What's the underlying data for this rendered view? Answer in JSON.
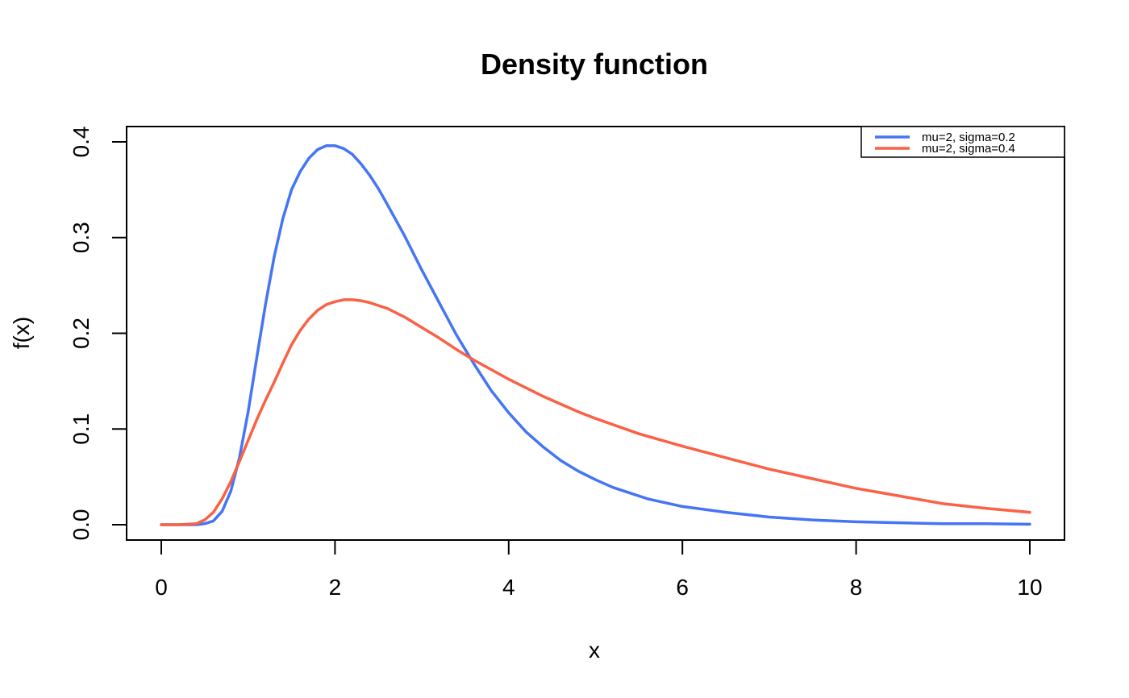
{
  "chart_data": {
    "type": "line",
    "title": "Density function",
    "xlabel": "x",
    "ylabel": "f(x)",
    "xlim": [
      0,
      10
    ],
    "ylim": [
      0,
      0.4
    ],
    "xticks": [
      0,
      2,
      4,
      6,
      8,
      10
    ],
    "yticks": [
      0,
      0.1,
      0.2,
      0.3,
      0.4
    ],
    "xtick_labels": [
      "0",
      "2",
      "4",
      "6",
      "8",
      "10"
    ],
    "ytick_labels": [
      "0.0",
      "0.1",
      "0.2",
      "0.3",
      "0.4"
    ],
    "grid": false,
    "legend_position": "top-right",
    "series": [
      {
        "name": "mu=2, sigma=0.2",
        "color": "#4575F5",
        "x": [
          0,
          0.2,
          0.4,
          0.5,
          0.6,
          0.7,
          0.8,
          0.9,
          1.0,
          1.1,
          1.2,
          1.3,
          1.4,
          1.5,
          1.6,
          1.7,
          1.8,
          1.9,
          2.0,
          2.1,
          2.2,
          2.3,
          2.4,
          2.5,
          2.6,
          2.8,
          3.0,
          3.2,
          3.4,
          3.6,
          3.8,
          4.0,
          4.2,
          4.4,
          4.6,
          4.8,
          5.0,
          5.2,
          5.4,
          5.6,
          5.8,
          6.0,
          6.5,
          7.0,
          7.5,
          8.0,
          8.5,
          9.0,
          9.5,
          10.0
        ],
        "values": [
          0,
          0,
          0,
          0.001,
          0.004,
          0.014,
          0.035,
          0.07,
          0.118,
          0.175,
          0.23,
          0.28,
          0.32,
          0.35,
          0.369,
          0.383,
          0.392,
          0.396,
          0.396,
          0.393,
          0.387,
          0.377,
          0.365,
          0.351,
          0.335,
          0.302,
          0.266,
          0.232,
          0.198,
          0.168,
          0.14,
          0.117,
          0.097,
          0.081,
          0.067,
          0.056,
          0.047,
          0.039,
          0.033,
          0.027,
          0.023,
          0.019,
          0.013,
          0.008,
          0.005,
          0.003,
          0.002,
          0.001,
          0.001,
          0.0005
        ]
      },
      {
        "name": "mu=2, sigma=0.4",
        "color": "#FA6145",
        "x": [
          0,
          0.2,
          0.4,
          0.5,
          0.6,
          0.7,
          0.8,
          0.9,
          1.0,
          1.1,
          1.2,
          1.3,
          1.4,
          1.5,
          1.6,
          1.7,
          1.8,
          1.9,
          2.0,
          2.1,
          2.2,
          2.3,
          2.4,
          2.6,
          2.8,
          3.0,
          3.2,
          3.4,
          3.6,
          3.8,
          4.0,
          4.2,
          4.4,
          4.6,
          4.8,
          5.0,
          5.5,
          6.0,
          6.5,
          7.0,
          7.5,
          8.0,
          8.5,
          9.0,
          9.5,
          10.0
        ],
        "values": [
          0,
          0,
          0.001,
          0.005,
          0.013,
          0.027,
          0.045,
          0.066,
          0.088,
          0.11,
          0.13,
          0.149,
          0.169,
          0.188,
          0.203,
          0.215,
          0.224,
          0.23,
          0.233,
          0.235,
          0.235,
          0.234,
          0.232,
          0.226,
          0.217,
          0.206,
          0.195,
          0.183,
          0.172,
          0.162,
          0.152,
          0.143,
          0.134,
          0.126,
          0.118,
          0.111,
          0.095,
          0.082,
          0.07,
          0.058,
          0.048,
          0.038,
          0.03,
          0.022,
          0.017,
          0.013
        ]
      }
    ]
  }
}
